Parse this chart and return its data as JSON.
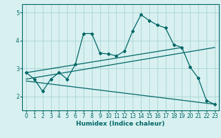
{
  "xlabel": "Humidex (Indice chaleur)",
  "bg_color": "#d8f0f0",
  "grid_color": "#aad4d4",
  "line_color": "#006666",
  "xlim": [
    -0.5,
    23.5
  ],
  "ylim": [
    1.5,
    5.3
  ],
  "xticks": [
    0,
    1,
    2,
    3,
    4,
    5,
    6,
    7,
    8,
    9,
    10,
    11,
    12,
    13,
    14,
    15,
    16,
    17,
    18,
    19,
    20,
    21,
    22,
    23
  ],
  "yticks": [
    2,
    3,
    4,
    5
  ],
  "main_line_x": [
    0,
    1,
    2,
    3,
    4,
    5,
    6,
    7,
    8,
    9,
    10,
    11,
    12,
    13,
    14,
    15,
    16,
    17,
    18,
    19,
    20,
    21,
    22,
    23
  ],
  "main_line_y": [
    2.85,
    2.62,
    2.18,
    2.62,
    2.85,
    2.62,
    3.15,
    4.25,
    4.25,
    3.55,
    3.52,
    3.45,
    3.62,
    4.35,
    4.92,
    4.72,
    4.55,
    4.45,
    3.85,
    3.75,
    3.05,
    2.65,
    1.85,
    1.72
  ],
  "upper_line_x": [
    0,
    19
  ],
  "upper_line_y": [
    2.85,
    3.75
  ],
  "lower_line_x": [
    0,
    23
  ],
  "lower_line_y": [
    2.55,
    1.72
  ],
  "middle_line_x": [
    0,
    23
  ],
  "middle_line_y": [
    2.62,
    3.75
  ]
}
